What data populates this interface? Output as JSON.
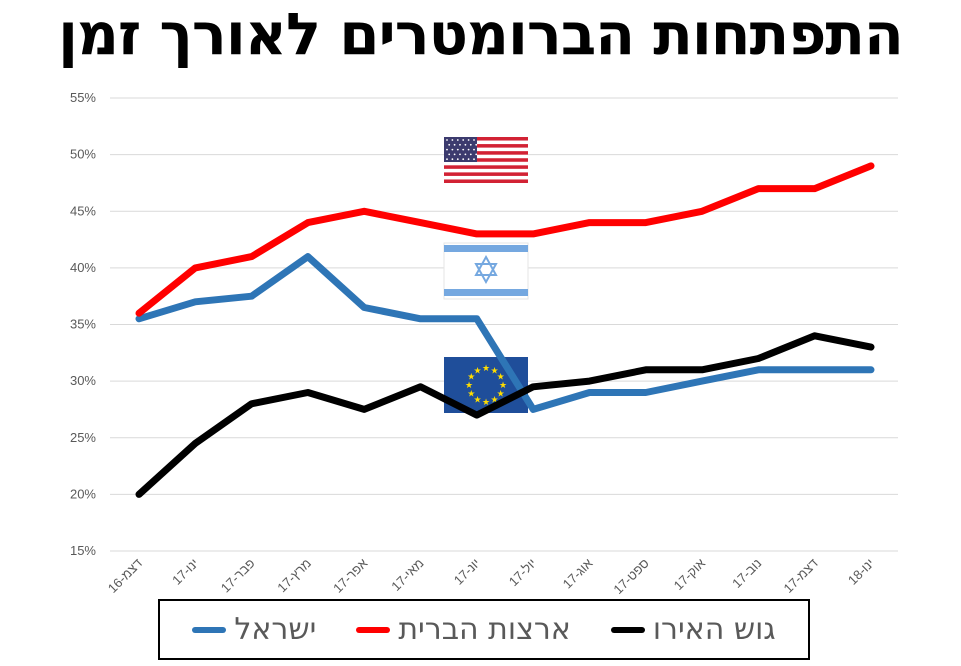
{
  "chart_data": {
    "type": "line",
    "title": "התפתחות הברומטרים לאורך זמן",
    "categories": [
      "דצמ-16",
      "ינו-17",
      "פבר-17",
      "מרץ-17",
      "אפר-17",
      "מאי-17",
      "יונ-17",
      "יול-17",
      "אוג-17",
      "ספט-17",
      "אוק-17",
      "נוב-17",
      "דצמ-17",
      "ינו-18"
    ],
    "y_ticks": [
      "15%",
      "20%",
      "25%",
      "30%",
      "35%",
      "40%",
      "45%",
      "50%",
      "55%"
    ],
    "ylim": [
      15,
      55
    ],
    "grid": true,
    "legend_position": "bottom",
    "series": [
      {
        "name": "ישראל",
        "color": "#2E75B6",
        "values": [
          35.5,
          37,
          37.5,
          41,
          36.5,
          35.5,
          35.5,
          27.5,
          29,
          29,
          30,
          31,
          31,
          31
        ]
      },
      {
        "name": "ארצות הברית",
        "color": "#FF0000",
        "values": [
          36,
          40,
          41,
          44,
          45,
          44,
          43,
          43,
          44,
          44,
          45,
          47,
          47,
          49
        ]
      },
      {
        "name": "גוש האירו",
        "color": "#000000",
        "values": [
          20,
          24.5,
          28,
          29,
          27.5,
          29.5,
          27,
          29.5,
          30,
          31,
          31,
          32,
          34,
          33
        ]
      }
    ],
    "flags": [
      "us-flag-icon",
      "israel-flag-icon",
      "eu-flag-icon"
    ]
  }
}
